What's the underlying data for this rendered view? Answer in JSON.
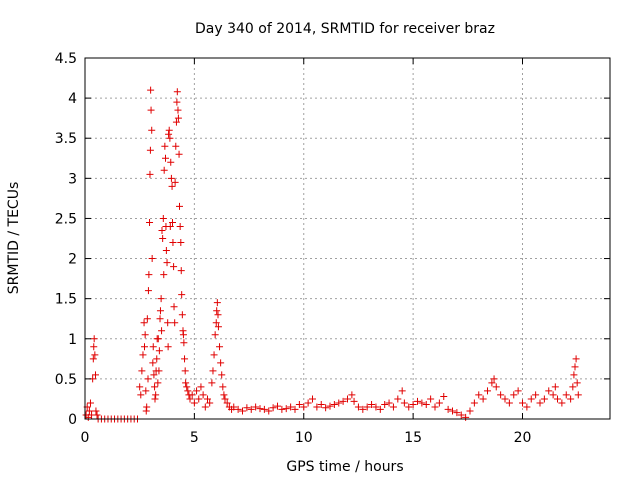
{
  "chart_data": {
    "type": "scatter",
    "title": "Day 340 of 2014, SRMTID for receiver braz",
    "xlabel": "GPS time / hours",
    "ylabel": "SRMTID / TECUs",
    "xlim": [
      0,
      24
    ],
    "ylim": [
      0,
      4.5
    ],
    "xticks": [
      "0",
      "5",
      "10",
      "15",
      "20"
    ],
    "yticks": [
      "0",
      "0.5",
      "1",
      "1.5",
      "2",
      "2.5",
      "3",
      "3.5",
      "4",
      "4.5"
    ],
    "grid": true,
    "marker": "+",
    "color": "#e00000",
    "series": [
      {
        "name": "SRMTID",
        "points": [
          [
            0.05,
            0.05
          ],
          [
            0.1,
            0.15
          ],
          [
            0.15,
            0.02
          ],
          [
            0.2,
            0.1
          ],
          [
            0.25,
            0.2
          ],
          [
            0.3,
            0.05
          ],
          [
            0.35,
            0.5
          ],
          [
            0.38,
            0.75
          ],
          [
            0.4,
            0.9
          ],
          [
            0.42,
            1.0
          ],
          [
            0.45,
            0.8
          ],
          [
            0.48,
            0.55
          ],
          [
            0.5,
            0.1
          ],
          [
            0.55,
            0.05
          ],
          [
            0.6,
            0.0
          ],
          [
            0.75,
            0.0
          ],
          [
            0.9,
            0.0
          ],
          [
            1.05,
            0.0
          ],
          [
            1.2,
            0.0
          ],
          [
            1.35,
            0.0
          ],
          [
            1.5,
            0.0
          ],
          [
            1.65,
            0.0
          ],
          [
            1.8,
            0.0
          ],
          [
            1.95,
            0.0
          ],
          [
            2.1,
            0.0
          ],
          [
            2.25,
            0.0
          ],
          [
            2.4,
            0.0
          ],
          [
            2.5,
            0.4
          ],
          [
            2.55,
            0.3
          ],
          [
            2.6,
            0.6
          ],
          [
            2.65,
            0.8
          ],
          [
            2.7,
            1.2
          ],
          [
            2.72,
            0.9
          ],
          [
            2.75,
            1.05
          ],
          [
            2.78,
            0.35
          ],
          [
            2.8,
            0.1
          ],
          [
            2.82,
            0.15
          ],
          [
            2.85,
            1.25
          ],
          [
            2.88,
            0.5
          ],
          [
            2.9,
            1.6
          ],
          [
            2.92,
            1.8
          ],
          [
            2.95,
            2.45
          ],
          [
            2.97,
            3.05
          ],
          [
            2.99,
            3.35
          ],
          [
            3.0,
            4.1
          ],
          [
            3.02,
            3.85
          ],
          [
            3.05,
            3.6
          ],
          [
            3.07,
            2.0
          ],
          [
            3.1,
            0.7
          ],
          [
            3.12,
            0.9
          ],
          [
            3.15,
            0.55
          ],
          [
            3.18,
            0.4
          ],
          [
            3.2,
            0.25
          ],
          [
            3.23,
            0.3
          ],
          [
            3.25,
            0.6
          ],
          [
            3.28,
            0.75
          ],
          [
            3.3,
            1.0
          ],
          [
            3.33,
            0.45
          ],
          [
            3.35,
            1.0
          ],
          [
            3.38,
            0.6
          ],
          [
            3.4,
            0.85
          ],
          [
            3.43,
            1.25
          ],
          [
            3.45,
            1.35
          ],
          [
            3.48,
            1.5
          ],
          [
            3.5,
            1.1
          ],
          [
            3.52,
            2.35
          ],
          [
            3.55,
            2.25
          ],
          [
            3.58,
            2.5
          ],
          [
            3.6,
            1.8
          ],
          [
            3.62,
            3.1
          ],
          [
            3.65,
            3.4
          ],
          [
            3.68,
            3.25
          ],
          [
            3.7,
            2.4
          ],
          [
            3.72,
            2.1
          ],
          [
            3.75,
            1.95
          ],
          [
            3.78,
            1.2
          ],
          [
            3.8,
            0.9
          ],
          [
            3.82,
            3.55
          ],
          [
            3.85,
            3.6
          ],
          [
            3.88,
            3.5
          ],
          [
            3.9,
            2.4
          ],
          [
            3.92,
            3.2
          ],
          [
            3.95,
            3.0
          ],
          [
            3.98,
            2.9
          ],
          [
            4.0,
            2.45
          ],
          [
            4.02,
            2.2
          ],
          [
            4.05,
            1.9
          ],
          [
            4.07,
            1.4
          ],
          [
            4.1,
            1.2
          ],
          [
            4.12,
            2.95
          ],
          [
            4.15,
            3.4
          ],
          [
            4.18,
            3.7
          ],
          [
            4.2,
            3.95
          ],
          [
            4.22,
            4.08
          ],
          [
            4.25,
            3.85
          ],
          [
            4.27,
            3.75
          ],
          [
            4.3,
            3.3
          ],
          [
            4.32,
            2.65
          ],
          [
            4.35,
            2.4
          ],
          [
            4.38,
            2.2
          ],
          [
            4.4,
            1.85
          ],
          [
            4.42,
            1.55
          ],
          [
            4.45,
            1.3
          ],
          [
            4.48,
            1.1
          ],
          [
            4.5,
            1.05
          ],
          [
            4.52,
            0.95
          ],
          [
            4.55,
            0.75
          ],
          [
            4.58,
            0.6
          ],
          [
            4.6,
            0.45
          ],
          [
            4.65,
            0.4
          ],
          [
            4.7,
            0.35
          ],
          [
            4.75,
            0.3
          ],
          [
            4.8,
            0.25
          ],
          [
            4.9,
            0.3
          ],
          [
            5.0,
            0.2
          ],
          [
            5.1,
            0.35
          ],
          [
            5.2,
            0.25
          ],
          [
            5.3,
            0.4
          ],
          [
            5.4,
            0.3
          ],
          [
            5.5,
            0.15
          ],
          [
            5.6,
            0.25
          ],
          [
            5.7,
            0.2
          ],
          [
            5.8,
            0.45
          ],
          [
            5.85,
            0.6
          ],
          [
            5.9,
            0.8
          ],
          [
            5.95,
            1.05
          ],
          [
            6.0,
            1.2
          ],
          [
            6.02,
            1.35
          ],
          [
            6.05,
            1.45
          ],
          [
            6.08,
            1.3
          ],
          [
            6.1,
            1.15
          ],
          [
            6.15,
            0.9
          ],
          [
            6.2,
            0.7
          ],
          [
            6.25,
            0.55
          ],
          [
            6.3,
            0.4
          ],
          [
            6.35,
            0.3
          ],
          [
            6.4,
            0.25
          ],
          [
            6.5,
            0.2
          ],
          [
            6.6,
            0.15
          ],
          [
            6.7,
            0.12
          ],
          [
            6.8,
            0.15
          ],
          [
            7.0,
            0.12
          ],
          [
            7.2,
            0.1
          ],
          [
            7.4,
            0.14
          ],
          [
            7.6,
            0.12
          ],
          [
            7.8,
            0.15
          ],
          [
            8.0,
            0.13
          ],
          [
            8.2,
            0.12
          ],
          [
            8.4,
            0.1
          ],
          [
            8.6,
            0.14
          ],
          [
            8.8,
            0.16
          ],
          [
            9.0,
            0.12
          ],
          [
            9.2,
            0.13
          ],
          [
            9.4,
            0.15
          ],
          [
            9.6,
            0.12
          ],
          [
            9.8,
            0.18
          ],
          [
            10.0,
            0.15
          ],
          [
            10.2,
            0.2
          ],
          [
            10.4,
            0.25
          ],
          [
            10.6,
            0.15
          ],
          [
            10.8,
            0.18
          ],
          [
            11.0,
            0.14
          ],
          [
            11.2,
            0.16
          ],
          [
            11.4,
            0.18
          ],
          [
            11.6,
            0.2
          ],
          [
            11.8,
            0.22
          ],
          [
            12.0,
            0.25
          ],
          [
            12.2,
            0.3
          ],
          [
            12.3,
            0.22
          ],
          [
            12.5,
            0.15
          ],
          [
            12.7,
            0.12
          ],
          [
            12.9,
            0.15
          ],
          [
            13.1,
            0.18
          ],
          [
            13.3,
            0.15
          ],
          [
            13.5,
            0.12
          ],
          [
            13.7,
            0.18
          ],
          [
            13.9,
            0.2
          ],
          [
            14.1,
            0.15
          ],
          [
            14.3,
            0.25
          ],
          [
            14.5,
            0.35
          ],
          [
            14.6,
            0.2
          ],
          [
            14.8,
            0.15
          ],
          [
            15.0,
            0.18
          ],
          [
            15.2,
            0.22
          ],
          [
            15.4,
            0.2
          ],
          [
            15.6,
            0.18
          ],
          [
            15.8,
            0.25
          ],
          [
            16.0,
            0.15
          ],
          [
            16.2,
            0.2
          ],
          [
            16.4,
            0.28
          ],
          [
            16.6,
            0.12
          ],
          [
            16.8,
            0.1
          ],
          [
            17.0,
            0.08
          ],
          [
            17.2,
            0.05
          ],
          [
            17.4,
            0.02
          ],
          [
            17.6,
            0.1
          ],
          [
            17.8,
            0.2
          ],
          [
            18.0,
            0.3
          ],
          [
            18.2,
            0.25
          ],
          [
            18.4,
            0.35
          ],
          [
            18.6,
            0.45
          ],
          [
            18.7,
            0.5
          ],
          [
            18.8,
            0.4
          ],
          [
            19.0,
            0.3
          ],
          [
            19.2,
            0.25
          ],
          [
            19.4,
            0.2
          ],
          [
            19.6,
            0.3
          ],
          [
            19.8,
            0.35
          ],
          [
            20.0,
            0.2
          ],
          [
            20.2,
            0.15
          ],
          [
            20.4,
            0.25
          ],
          [
            20.6,
            0.3
          ],
          [
            20.8,
            0.2
          ],
          [
            21.0,
            0.25
          ],
          [
            21.2,
            0.35
          ],
          [
            21.4,
            0.3
          ],
          [
            21.5,
            0.4
          ],
          [
            21.6,
            0.25
          ],
          [
            21.8,
            0.2
          ],
          [
            22.0,
            0.3
          ],
          [
            22.2,
            0.25
          ],
          [
            22.3,
            0.4
          ],
          [
            22.35,
            0.55
          ],
          [
            22.4,
            0.65
          ],
          [
            22.45,
            0.75
          ],
          [
            22.5,
            0.45
          ],
          [
            22.55,
            0.3
          ]
        ]
      }
    ]
  }
}
